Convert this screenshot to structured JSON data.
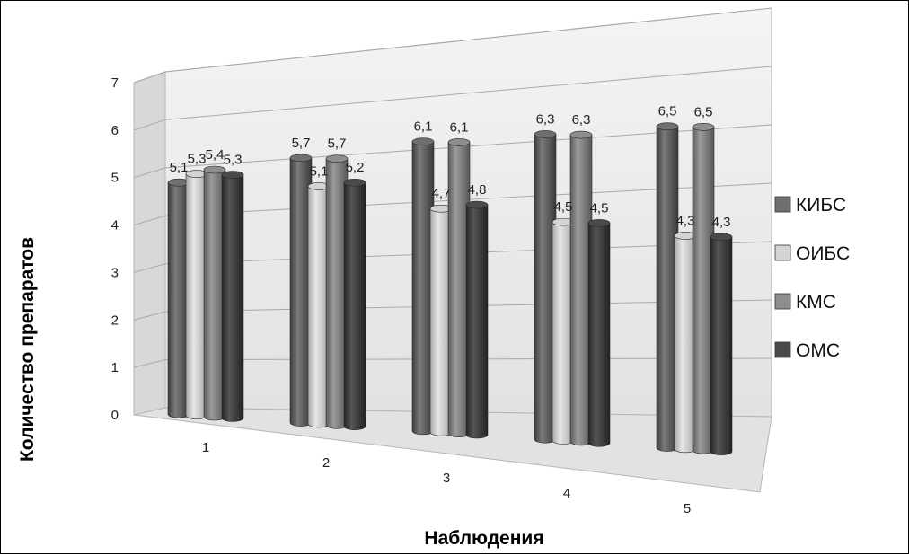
{
  "chart_data": {
    "type": "bar",
    "style": "3d-cylinder",
    "categories": [
      "1",
      "2",
      "3",
      "4",
      "5"
    ],
    "series": [
      {
        "name": "КИБС",
        "values": [
          5.1,
          5.7,
          6.1,
          6.3,
          6.5
        ],
        "labels": [
          "5,1",
          "5,7",
          "6,1",
          "6,3",
          "6,5"
        ],
        "color": "#6f6f6f"
      },
      {
        "name": "ОИБС",
        "values": [
          5.3,
          5.1,
          4.7,
          4.5,
          4.3
        ],
        "labels": [
          "5,3",
          "5,1",
          "4,7",
          "4,5",
          "4,3"
        ],
        "color": "#d4d4d4"
      },
      {
        "name": "КМС",
        "values": [
          5.4,
          5.7,
          6.1,
          6.3,
          6.5
        ],
        "labels": [
          "5,4",
          "5,7",
          "6,1",
          "6,3",
          "6,5"
        ],
        "color": "#8e8e8e"
      },
      {
        "name": "ОМС",
        "values": [
          5.3,
          5.2,
          4.8,
          4.5,
          4.3
        ],
        "labels": [
          "5,3",
          "5,2",
          "4,8",
          "4,5",
          "4,3"
        ],
        "color": "#4a4a4a"
      }
    ],
    "ylim": [
      0,
      7
    ],
    "yticks": [
      "0",
      "1",
      "2",
      "3",
      "4",
      "5",
      "6",
      "7"
    ],
    "xlabel": "Наблюдения",
    "ylabel": "Количество препаратов",
    "grid": true,
    "legend": "right"
  }
}
